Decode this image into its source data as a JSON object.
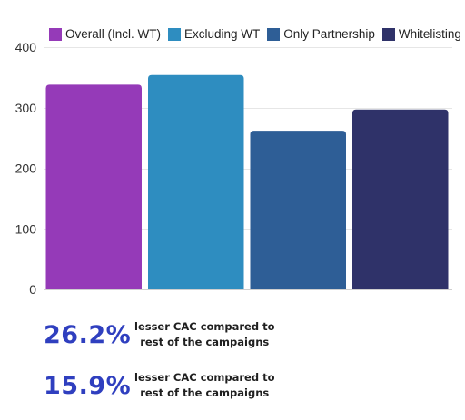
{
  "chart_data": {
    "type": "bar",
    "categories": [
      "Overall (Incl. WT)",
      "Excluding WT",
      "Only Partnership",
      "Whitelisting"
    ],
    "values": [
      338,
      354,
      262,
      297
    ],
    "colors": [
      "#953ab8",
      "#2e8dc0",
      "#2e5e96",
      "#2f3269"
    ],
    "ylim": [
      0,
      400
    ],
    "yticks": [
      0,
      100,
      200,
      300,
      400
    ],
    "grid": true,
    "legend_position": "top",
    "title": "",
    "xlabel": "",
    "ylabel": ""
  },
  "stats": [
    {
      "value": "26.2%",
      "line1": "lesser CAC compared to",
      "line2": "rest of the campaigns"
    },
    {
      "value": "15.9%",
      "line1": "lesser CAC compared to",
      "line2": "rest of the campaigns"
    }
  ]
}
